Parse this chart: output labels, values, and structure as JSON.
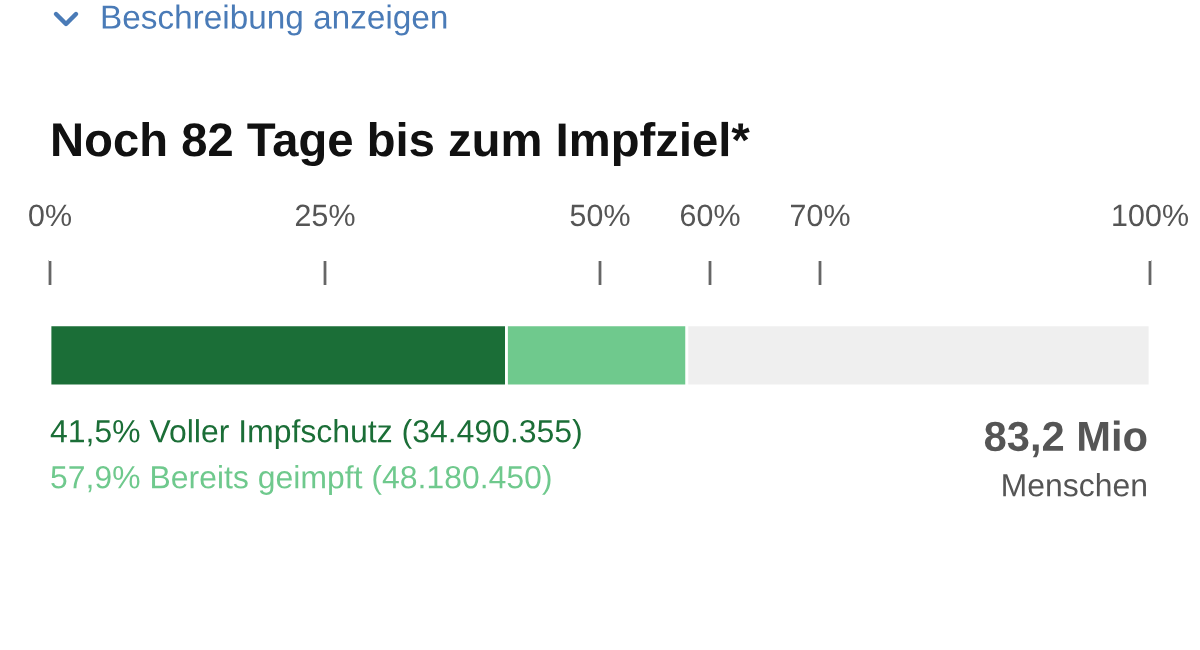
{
  "chart_data": {
    "type": "bar",
    "orientation": "horizontal",
    "stacked": true,
    "title": "Noch 82 Tage bis zum Impfziel*",
    "categories": [
      null
    ],
    "series": [
      {
        "name": "41,5% Voller Impfschutz (34.490.355)",
        "color": "#1b6e37",
        "values": [
          41.5
        ]
      },
      {
        "name": "57,9% Bereits geimpft (48.180.450)",
        "color": "#6fc98d",
        "values": [
          16.4
        ]
      },
      {
        "color": "#efefef",
        "values": [
          42.1
        ]
      }
    ],
    "xlim": [
      0,
      100
    ],
    "xticks": [
      {
        "value": 0,
        "label": "0%"
      },
      {
        "value": 25,
        "label": "25%"
      },
      {
        "value": 50,
        "label": "50%"
      },
      {
        "value": 60,
        "label": "60%"
      },
      {
        "value": 70,
        "label": "70%"
      },
      {
        "value": 100,
        "label": "100%"
      }
    ],
    "tick_labels": "x",
    "grid": false,
    "annotations": [
      "Beschreibung anzeigen",
      "83,2 Mio",
      "Menschen"
    ]
  }
}
